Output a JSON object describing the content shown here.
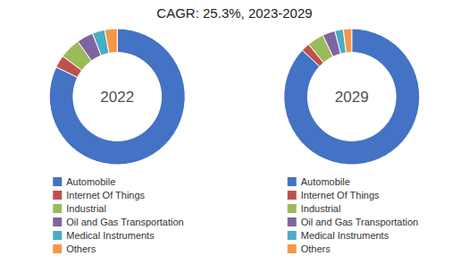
{
  "chart_data": {
    "type": "donut",
    "title": "CAGR:   25.3%, 2023-2029",
    "categories": [
      "Automobile",
      "Internet Of Things",
      "Industrial",
      "Oil and Gas Transportation",
      "Medical Instruments",
      "Others"
    ],
    "colors": [
      "#4472C4",
      "#C0504D",
      "#9BBB59",
      "#8064A2",
      "#4BACC6",
      "#F79646"
    ],
    "series": [
      {
        "name": "2022",
        "values": [
          83,
          3,
          5,
          4,
          3,
          3
        ]
      },
      {
        "name": "2029",
        "values": [
          87,
          2,
          4,
          3,
          2,
          2
        ]
      }
    ],
    "legend": "bottom"
  }
}
